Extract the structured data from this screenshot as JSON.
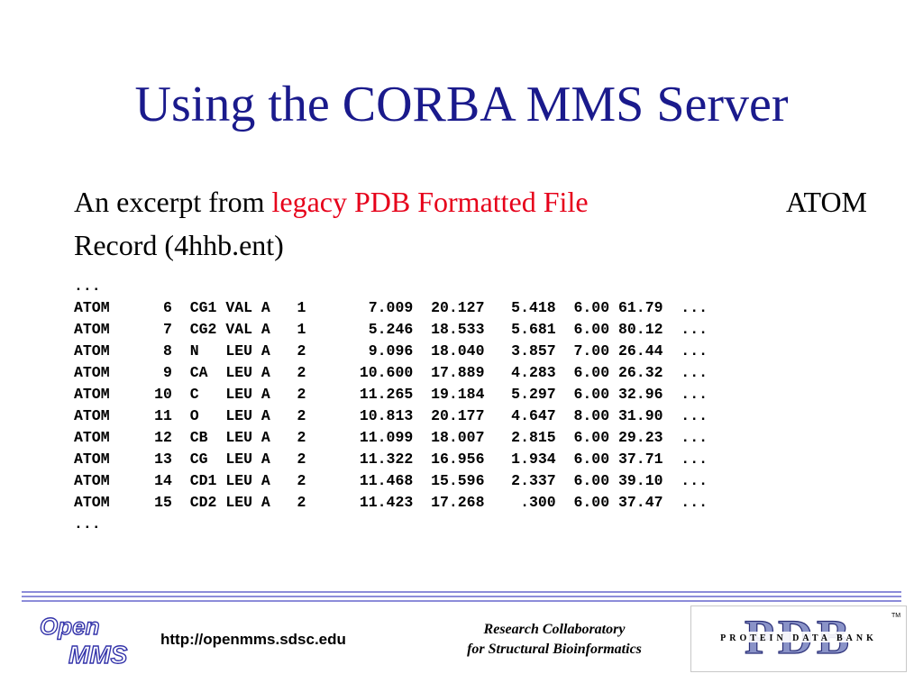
{
  "slide": {
    "title": "Using the CORBA MMS Server",
    "intro_before": "An excerpt from ",
    "intro_highlight": "legacy PDB Formatted File",
    "intro_tail": "ATOM",
    "intro_line2": "Record (4hhb.ent)",
    "pdb_text": "...\nATOM      6  CG1 VAL A   1       7.009  20.127   5.418  6.00 61.79  ...\nATOM      7  CG2 VAL A   1       5.246  18.533   5.681  6.00 80.12  ...\nATOM      8  N   LEU A   2       9.096  18.040   3.857  7.00 26.44  ...\nATOM      9  CA  LEU A   2      10.600  17.889   4.283  6.00 26.32  ...\nATOM     10  C   LEU A   2      11.265  19.184   5.297  6.00 32.96  ...\nATOM     11  O   LEU A   2      10.813  20.177   4.647  8.00 31.90  ...\nATOM     12  CB  LEU A   2      11.099  18.007   2.815  6.00 29.23  ...\nATOM     13  CG  LEU A   2      11.322  16.956   1.934  6.00 37.71  ...\nATOM     14  CD1 LEU A   2      11.468  15.596   2.337  6.00 39.10  ...\nATOM     15  CD2 LEU A   2      11.423  17.268    .300  6.00 37.47  ...\n..."
  },
  "footer": {
    "logo_open_line1": "Open",
    "logo_open_line2": "MMS",
    "url": "http://openmms.sdsc.edu",
    "rcsb_line1": "Research Collaboratory",
    "rcsb_line2": "for Structural Bioinformatics",
    "pdb_big": "PDB",
    "pdb_tm": "TM",
    "pdb_small": "PROTEIN DATA BANK"
  },
  "colors": {
    "title": "#1a1a8c",
    "highlight": "#e6001a",
    "rule": "#8c8cd9",
    "logo_blue": "#3333aa",
    "pdb_fill": "#8a93c8",
    "pdb_stroke": "#2a2f78"
  }
}
